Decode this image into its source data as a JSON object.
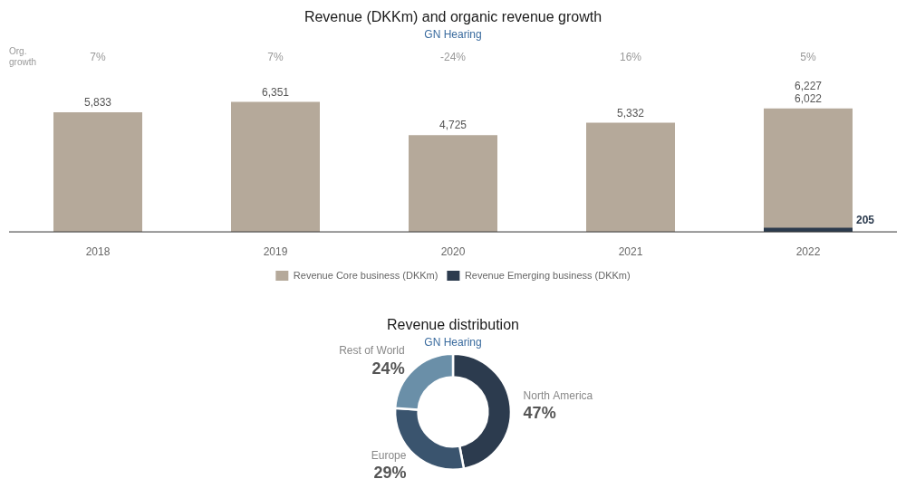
{
  "chart_data": [
    {
      "type": "bar",
      "title": "Revenue (DKKm) and organic revenue growth",
      "subtitle": "GN Hearing",
      "categories": [
        "2018",
        "2019",
        "2020",
        "2021",
        "2022"
      ],
      "series": [
        {
          "name": "Revenue Core business (DKKm)",
          "color": "#b5a99a",
          "values": [
            5833,
            6351,
            4725,
            5332,
            6022
          ],
          "value_labels": [
            "5,833",
            "6,351",
            "4,725",
            "5,332",
            "6,022"
          ]
        },
        {
          "name": "Revenue Emerging business (DKKm)",
          "color": "#2c3b4e",
          "values": [
            0,
            0,
            0,
            0,
            205
          ],
          "value_labels": [
            null,
            null,
            null,
            null,
            "205"
          ]
        }
      ],
      "data_labels": true,
      "annotations": [
        {
          "text": "6,227",
          "x": "2022",
          "y": 6227
        },
        {
          "text": "Org.\ngrowth"
        },
        {
          "text": "7%",
          "x": "2018"
        },
        {
          "text": "7%",
          "x": "2019"
        },
        {
          "text": "-24%",
          "x": "2020"
        },
        {
          "text": "16%",
          "x": "2021"
        },
        {
          "text": "5%",
          "x": "2022"
        }
      ],
      "ylim": [
        -200,
        7800
      ],
      "tick_labels": "x",
      "grid": false,
      "legend": "bottom"
    },
    {
      "type": "doughnut",
      "title": "Revenue distribution",
      "subtitle": "GN Hearing",
      "categories": [
        "North America",
        "Europe",
        "Rest of World"
      ],
      "values": [
        47,
        29,
        24
      ],
      "value_labels": [
        "47%",
        "29%",
        "24%"
      ],
      "colors": [
        "#2c3b4e",
        "#3a546e",
        "#6a8fa8"
      ],
      "data_labels": true
    }
  ]
}
